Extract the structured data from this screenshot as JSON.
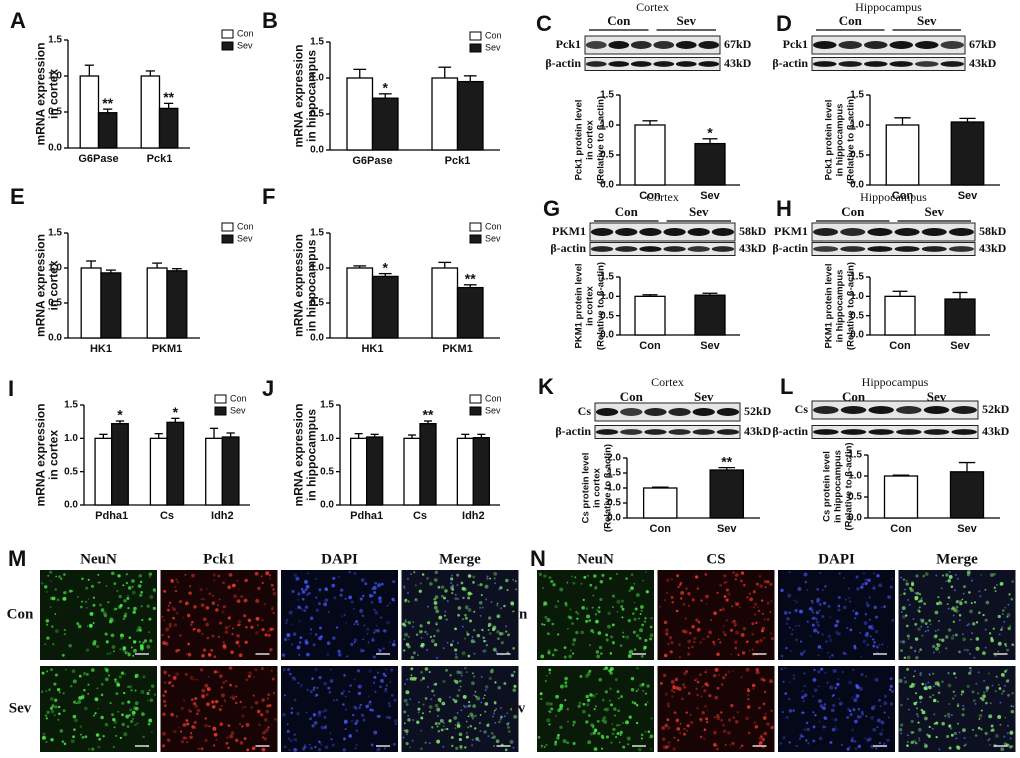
{
  "chart_data": [
    {
      "panel": "A",
      "type": "bar",
      "ylabel": [
        "mRNA expression",
        "in cortex"
      ],
      "categories": [
        "G6Pase",
        "Pck1"
      ],
      "series": [
        {
          "name": "Con",
          "color": "#ffffff",
          "values": [
            1.0,
            1.0
          ],
          "errors": [
            0.15,
            0.07
          ]
        },
        {
          "name": "Sev",
          "color": "#1a1a1a",
          "values": [
            0.49,
            0.55
          ],
          "errors": [
            0.05,
            0.07
          ],
          "significance": [
            "**",
            "**"
          ]
        }
      ],
      "ylim": [
        0,
        1.5
      ],
      "yticks": [
        {
          "value": 0,
          "label": "0.0"
        },
        0.5,
        {
          "value": 1,
          "label": "1.0"
        },
        1.5
      ]
    },
    {
      "panel": "B",
      "type": "bar",
      "ylabel": [
        "mRNA expression",
        "in hippocampus"
      ],
      "categories": [
        "G6Pase",
        "Pck1"
      ],
      "series": [
        {
          "name": "Con",
          "color": "#ffffff",
          "values": [
            1.0,
            1.0
          ],
          "errors": [
            0.12,
            0.15
          ]
        },
        {
          "name": "Sev",
          "color": "#1a1a1a",
          "values": [
            0.72,
            0.95
          ],
          "errors": [
            0.06,
            0.08
          ],
          "significance": [
            "*",
            null
          ]
        }
      ],
      "ylim": [
        0,
        1.5
      ],
      "yticks": [
        {
          "value": 0,
          "label": "0.0"
        },
        0.5,
        {
          "value": 1,
          "label": "1.0"
        },
        1.5
      ]
    },
    {
      "type": "bar",
      "ylabel": [
        "Pck1 protein level",
        "in cortex",
        "(Relative to β-actin)"
      ],
      "categories": [
        "Con",
        "Sev"
      ],
      "values": [
        1.0,
        0.69
      ],
      "errors": [
        0.07,
        0.08
      ],
      "significance": [
        null,
        "*"
      ],
      "colors": [
        "#ffffff",
        "#1a1a1a"
      ],
      "ylim": [
        0,
        1.5
      ],
      "yticks": [
        {
          "value": 0,
          "label": "0.0"
        },
        0.5,
        {
          "value": 1,
          "label": "1.0"
        },
        1.5
      ]
    },
    {
      "type": "bar",
      "ylabel": [
        "Pck1 protein level",
        "in hippocampus",
        "(Relative to β-actin)"
      ],
      "categories": [
        "Con",
        "Sev"
      ],
      "values": [
        1.0,
        1.05
      ],
      "errors": [
        0.12,
        0.06
      ],
      "colors": [
        "#ffffff",
        "#1a1a1a"
      ],
      "ylim": [
        0,
        1.5
      ],
      "yticks": [
        {
          "value": 0,
          "label": "0.0"
        },
        0.5,
        {
          "value": 1,
          "label": "1.0"
        },
        1.5
      ]
    },
    {
      "panel": "E",
      "type": "bar",
      "ylabel": [
        "mRNA expression",
        "in cortex"
      ],
      "categories": [
        "HK1",
        "PKM1"
      ],
      "series": [
        {
          "name": "Con",
          "color": "#ffffff",
          "values": [
            1.0,
            1.0
          ],
          "errors": [
            0.1,
            0.07
          ]
        },
        {
          "name": "Sev",
          "color": "#1a1a1a",
          "values": [
            0.93,
            0.96
          ],
          "errors": [
            0.04,
            0.03
          ]
        }
      ],
      "ylim": [
        0,
        1.5
      ],
      "yticks": [
        {
          "value": 0,
          "label": "0.0"
        },
        0.5,
        {
          "value": 1,
          "label": "1.0"
        },
        1.5
      ]
    },
    {
      "panel": "F",
      "type": "bar",
      "ylabel": [
        "mRNA expression",
        "in hippocampus"
      ],
      "categories": [
        "HK1",
        "PKM1"
      ],
      "series": [
        {
          "name": "Con",
          "color": "#ffffff",
          "values": [
            1.0,
            1.0
          ],
          "errors": [
            0.03,
            0.08
          ]
        },
        {
          "name": "Sev",
          "color": "#1a1a1a",
          "values": [
            0.88,
            0.72
          ],
          "errors": [
            0.04,
            0.04
          ],
          "significance": [
            "*",
            "**"
          ]
        }
      ],
      "ylim": [
        0,
        1.5
      ],
      "yticks": [
        {
          "value": 0,
          "label": "0.0"
        },
        0.5,
        {
          "value": 1,
          "label": "1.0"
        },
        1.5
      ]
    },
    {
      "type": "bar",
      "ylabel": [
        "PKM1 protein level",
        "in cortex",
        "(Relative to β-actin)"
      ],
      "categories": [
        "Con",
        "Sev"
      ],
      "values": [
        1.0,
        1.03
      ],
      "errors": [
        0.04,
        0.05
      ],
      "colors": [
        "#ffffff",
        "#1a1a1a"
      ],
      "ylim": [
        0,
        1.5
      ],
      "yticks": [
        {
          "value": 0,
          "label": "0.0"
        },
        0.5,
        {
          "value": 1,
          "label": "1.0"
        },
        1.5
      ]
    },
    {
      "type": "bar",
      "ylabel": [
        "PKM1 protein level",
        "in hippocampus",
        "(Relative to β-actin)"
      ],
      "categories": [
        "Con",
        "Sev"
      ],
      "values": [
        1.0,
        0.93
      ],
      "errors": [
        0.13,
        0.17
      ],
      "colors": [
        "#ffffff",
        "#1a1a1a"
      ],
      "ylim": [
        0,
        1.5
      ],
      "yticks": [
        {
          "value": 0,
          "label": "0.0"
        },
        0.5,
        {
          "value": 1,
          "label": "1.0"
        },
        1.5
      ]
    },
    {
      "panel": "I",
      "type": "bar",
      "ylabel": [
        "mRNA expression",
        "in cortex"
      ],
      "categories": [
        "Pdha1",
        "Cs",
        "Idh2"
      ],
      "series": [
        {
          "name": "Con",
          "color": "#ffffff",
          "values": [
            1.0,
            1.0,
            1.0
          ],
          "errors": [
            0.06,
            0.07,
            0.15
          ]
        },
        {
          "name": "Sev",
          "color": "#1a1a1a",
          "values": [
            1.22,
            1.24,
            1.02
          ],
          "errors": [
            0.04,
            0.06,
            0.06
          ],
          "significance": [
            "*",
            "*",
            null
          ]
        }
      ],
      "ylim": [
        0,
        1.5
      ],
      "yticks": [
        {
          "value": 0,
          "label": "0.0"
        },
        0.5,
        {
          "value": 1,
          "label": "1.0"
        },
        1.5
      ]
    },
    {
      "panel": "J",
      "type": "bar",
      "ylabel": [
        "mRNA expression",
        "in hippocampus"
      ],
      "categories": [
        "Pdha1",
        "Cs",
        "Idh2"
      ],
      "series": [
        {
          "name": "Con",
          "color": "#ffffff",
          "values": [
            1.0,
            1.0,
            1.0
          ],
          "errors": [
            0.07,
            0.05,
            0.06
          ]
        },
        {
          "name": "Sev",
          "color": "#1a1a1a",
          "values": [
            1.02,
            1.22,
            1.01
          ],
          "errors": [
            0.04,
            0.04,
            0.05
          ],
          "significance": [
            null,
            "**",
            null
          ]
        }
      ],
      "ylim": [
        0,
        1.5
      ],
      "yticks": [
        {
          "value": 0,
          "label": "0.0"
        },
        0.5,
        {
          "value": 1,
          "label": "1.0"
        },
        1.5
      ]
    },
    {
      "type": "bar",
      "ylabel": [
        "Cs protein level",
        "in cortex",
        "(Relative to β-actin)"
      ],
      "categories": [
        "Con",
        "Sev"
      ],
      "values": [
        1.0,
        1.6
      ],
      "errors": [
        0.03,
        0.08
      ],
      "significance": [
        null,
        "**"
      ],
      "colors": [
        "#ffffff",
        "#1a1a1a"
      ],
      "ylim": [
        0,
        2
      ],
      "yticks": [
        {
          "value": 0,
          "label": "0.0"
        },
        0.5,
        {
          "value": 1,
          "label": "1.0"
        },
        1.5,
        {
          "value": 2,
          "label": "2.0"
        }
      ]
    },
    {
      "type": "bar",
      "ylabel": [
        "Cs protein level",
        "in hippocampus",
        "(Relative to β-actin)"
      ],
      "categories": [
        "Con",
        "Sev"
      ],
      "values": [
        1.0,
        1.1
      ],
      "errors": [
        0.02,
        0.22
      ],
      "colors": [
        "#ffffff",
        "#1a1a1a"
      ],
      "ylim": [
        0,
        1.5
      ],
      "yticks": [
        {
          "value": 0,
          "label": "0.0"
        },
        0.5,
        {
          "value": 1,
          "label": "1.0"
        },
        1.5
      ]
    }
  ],
  "blots": [
    {
      "panel": "C",
      "title": "Cortex",
      "groups": [
        "Con",
        "Sev"
      ],
      "rows": [
        {
          "label": "Pck1",
          "size": "67kD"
        },
        {
          "label": "β-actin",
          "size": "43kD"
        }
      ]
    },
    {
      "panel": "D",
      "title": "Hippocampus",
      "groups": [
        "Con",
        "Sev"
      ],
      "rows": [
        {
          "label": "Pck1",
          "size": "67kD"
        },
        {
          "label": "β-actin",
          "size": "43kD"
        }
      ]
    },
    {
      "panel": "G",
      "title": "Cortex",
      "groups": [
        "Con",
        "Sev"
      ],
      "rows": [
        {
          "label": "PKM1",
          "size": "58kD"
        },
        {
          "label": "β-actin",
          "size": "43kD"
        }
      ]
    },
    {
      "panel": "H",
      "title": "Hippocampus",
      "groups": [
        "Con",
        "Sev"
      ],
      "rows": [
        {
          "label": "PKM1",
          "size": "58kD"
        },
        {
          "label": "β-actin",
          "size": "43kD"
        }
      ]
    },
    {
      "panel": "K",
      "title": "Cortex",
      "groups": [
        "Con",
        "Sev"
      ],
      "rows": [
        {
          "label": "Cs",
          "size": "52kD"
        },
        {
          "label": "β-actin",
          "size": "43kD"
        }
      ]
    },
    {
      "panel": "L",
      "title": "Hippocampus",
      "groups": [
        "Con",
        "Sev"
      ],
      "rows": [
        {
          "label": "Cs",
          "size": "52kD"
        },
        {
          "label": "β-actin",
          "size": "43kD"
        }
      ]
    }
  ],
  "micrographs": [
    {
      "panel": "M",
      "columns": [
        "NeuN",
        "Pck1",
        "DAPI",
        "Merge"
      ],
      "rows": [
        "Con",
        "Sev"
      ]
    },
    {
      "panel": "N",
      "columns": [
        "NeuN",
        "CS",
        "DAPI",
        "Merge"
      ],
      "rows": [
        "Con",
        "Sev"
      ]
    }
  ]
}
